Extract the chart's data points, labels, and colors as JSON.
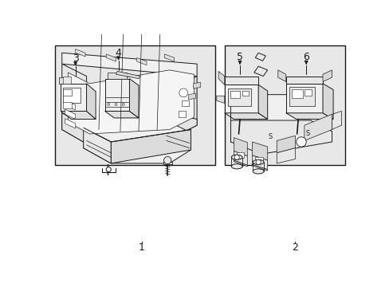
{
  "background_color": "#ffffff",
  "box_bg": "#e8e8e8",
  "line_color": "#1a1a1a",
  "figsize": [
    4.89,
    3.6
  ],
  "dpi": 100
}
